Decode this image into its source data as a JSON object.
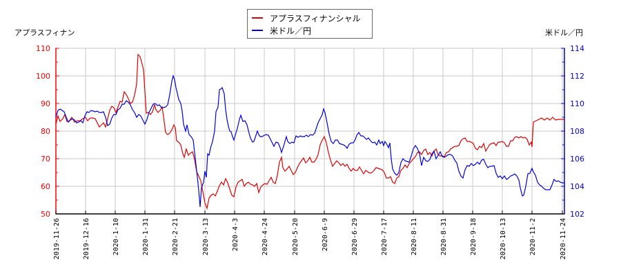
{
  "legend": {
    "series1": "アプラスフィナンシャル",
    "series2": "米ドル／円"
  },
  "axes": {
    "left_title": "アプラスフィナン",
    "right_title": "米ドル／円"
  },
  "colors": {
    "series1": "#dd0000",
    "series2": "#0000dd",
    "left_axis": "#ff0000",
    "right_axis": "#0000cc",
    "grid": "#c8c8c8"
  },
  "chart_data": {
    "type": "line",
    "title": "",
    "legend_position": "top-center",
    "grid": true,
    "x_tick_labels": [
      "2019-11-26",
      "2019-12-16",
      "2020-1-10",
      "2020-1-31",
      "2020-2-21",
      "2020-3-13",
      "2020-4-3",
      "2020-4-24",
      "2020-5-20",
      "2020-6-9",
      "2020-6-29",
      "2020-7-17",
      "2020-8-11",
      "2020-8-31",
      "2020-9-18",
      "2020-10-13",
      "2020-11-2",
      "2020-11-24"
    ],
    "y_left": {
      "label": "アプラスフィナン",
      "ticks": [
        50,
        60,
        70,
        80,
        90,
        100,
        110
      ],
      "range": [
        50,
        110
      ]
    },
    "y_right": {
      "label": "米ドル／円",
      "ticks": [
        102,
        104,
        106,
        108,
        110,
        112,
        114
      ],
      "range": [
        102,
        114
      ]
    },
    "series": [
      {
        "name": "アプラスフィナンシャル",
        "axis": "left",
        "x": [
          "2019-11-26",
          "2019-12-16",
          "2020-1-10",
          "2020-1-31",
          "2020-2-21",
          "2020-3-13",
          "2020-4-3",
          "2020-4-24",
          "2020-5-20",
          "2020-6-9",
          "2020-6-29",
          "2020-7-17",
          "2020-8-11",
          "2020-8-31",
          "2020-9-18",
          "2020-10-13",
          "2020-11-2",
          "2020-11-24"
        ],
        "values": [
          90,
          91,
          90,
          86,
          81,
          55,
          60,
          60,
          66,
          69,
          68,
          65,
          66,
          72,
          76,
          77,
          84,
          84
        ]
      },
      {
        "name": "米ドル／円",
        "axis": "right",
        "x": [
          "2019-11-26",
          "2019-12-16",
          "2020-1-10",
          "2020-1-31",
          "2020-2-21",
          "2020-3-13",
          "2020-4-3",
          "2020-4-24",
          "2020-5-20",
          "2020-6-9",
          "2020-6-29",
          "2020-7-17",
          "2020-8-11",
          "2020-8-31",
          "2020-9-18",
          "2020-10-13",
          "2020-11-2",
          "2020-11-24"
        ],
        "values": [
          108.7,
          108.9,
          108.5,
          108.6,
          111.5,
          107.6,
          108.4,
          107.7,
          107.9,
          108.9,
          107.3,
          107.3,
          106.0,
          106.0,
          105.6,
          105.6,
          104.5,
          104.3
        ]
      }
    ],
    "series_paths": {
      "s1": "81,180 84,168 87,176 91,172 94,166 97,176 100,176 104,170 108,177 112,175 116,175 120,172 124,170 127,175 131,171 134,171 138,172 141,178 144,184 147,181 150,178 153,184 156,172 159,160 162,154 165,156 168,163 171,155 174,147 177,148 180,133 183,137 186,143 189,150 192,148 195,138 198,122 200,79 203,82 206,93 208,101 210,132 212,164 215,163 218,166 221,162 224,152 226,159 229,163 232,160 235,155 237,169 240,192 243,195 246,193 249,188 252,181 254,185 256,204 259,206 262,210 265,223 267,228 270,216 273,225 276,222 279,220 282,231 285,249 288,255 291,262 294,278 297,294 300,302 303,287 306,283 309,281 312,284 315,277 318,269 321,264 324,268 327,259 330,265 333,274 336,283 339,285 342,271 345,264 348,262 351,260 354,270 357,266 360,264 363,267 366,268 369,270 372,266 375,279 378,271 381,268 384,266 387,267 390,262 393,257 396,264 399,266 402,254 405,235 408,228 410,243 413,248 416,245 419,241 422,247 425,253 428,250 431,243 434,237 437,233 440,229 443,236 446,233 449,228 452,235 455,235 458,231 461,224 464,210 467,203 470,198 473,207 476,221 479,232 482,241 485,237 488,233 491,236 494,240 497,237 500,241 503,238 506,244 509,248 512,244 515,247 518,247 521,242 524,247 527,252 530,247 533,249 536,251 539,250 542,247 545,243 548,244 551,245 554,246 557,250 560,258 563,258 566,256 569,264 572,266 575,258 578,256 581,247 584,244 587,239 590,243 593,237 596,234 599,230 602,227 605,221 608,220 611,224 614,218 617,216 620,224 623,221 626,226 629,219 632,216 635,224 638,226 641,226 644,227 647,221 650,220 653,216 656,214 659,212 662,212 665,211 668,204 671,201 674,200 677,205 680,205 683,206 686,208 689,215 692,217 695,212 698,214 701,208 704,219 707,214 710,209 713,208 716,207 719,211 722,206 725,206 728,205 731,207 734,212 737,212 740,204 743,204 746,199 749,198 752,200 755,198 758,200 761,199 764,202 767,210 770,206 771,213 773,177 777,175 781,173 785,171 789,174 793,171 797,174 801,170 805,174 809,173 813,173 818,173",
      "s2": "81,170 84,160 87,158 90,160 93,162 96,170 99,177 102,174 105,172 108,174 111,178 114,177 117,175 120,178 123,168 126,162 129,163 132,160 135,161 138,162 141,161 144,163 147,163 150,162 153,170 156,182 159,180 162,171 165,166 168,166 171,159 174,157 177,151 180,151 183,146 186,148 189,152 192,159 195,163 198,170 201,166 204,168 207,174 210,180 213,173 216,163 219,157 222,151 225,150 228,153 231,152 234,156 237,156 240,155 243,152 246,137 249,118 251,110 253,115 255,127 257,135 259,144 262,150 264,161 266,180 269,190 271,181 274,195 277,198 280,203 283,230 286,256 288,276 290,300 292,272 295,264 297,248 299,257 301,223 303,225 305,215 308,205 311,190 313,162 316,155 318,130 320,129 322,127 325,136 327,159 329,173 331,183 333,190 335,191 337,198 339,203 341,196 344,186 347,173 349,167 352,176 355,175 358,181 361,193 363,200 366,206 368,205 371,196 373,190 375,195 377,198 380,198 383,196 386,195 389,196 391,200 394,206 397,212 400,206 403,207 406,214 408,221 411,212 413,205 415,198 417,205 420,208 423,206 426,207 429,197 432,199 435,197 438,198 441,198 444,196 447,198 450,195 453,196 456,193 458,187 461,178 464,172 467,166 469,158 471,163 474,178 477,194 480,205 483,208 486,203 489,203 492,208 495,209 498,210 501,212 503,215 506,209 509,207 512,207 515,202 517,196 520,192 523,197 526,197 528,199 531,202 534,200 537,204 540,207 543,206 546,210 549,203 551,208 554,205 556,211 558,205 561,210 563,214 565,207 567,230 569,245 572,251 575,254 578,250 581,236 584,230 587,233 590,234 593,235 596,226 599,216 602,211 605,215 608,223 611,240 614,228 617,233 620,234 623,231 626,223 629,219 632,230 635,225 638,220 641,227 644,228 647,226 650,224 653,224 656,226 659,232 662,236 665,248 668,255 671,258 674,246 677,240 680,241 683,237 686,240 689,238 692,235 695,238 698,232 701,231 704,238 707,243 710,241 713,241 716,240 719,251 722,257 725,255 728,259 731,255 734,260 737,258 740,255 743,254 746,252 749,255 752,261 754,272 757,284 759,283 762,270 765,252 768,251 771,244 773,249 776,254 779,264 782,268 785,270 788,273 791,275 794,275 797,275 800,268 803,260 806,263 809,262 812,264 815,265 818,265"
    }
  }
}
